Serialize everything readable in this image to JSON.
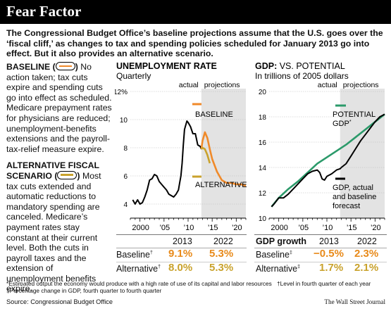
{
  "title": "Fear Factor",
  "intro": "The Congressional Budget Office’s baseline projections assume that the U.S. goes over the ‘fiscal cliff,’ as changes to tax and spending policies scheduled for January 2013 go into effect. But it also provides an alternative scenario.",
  "baseline_desc": {
    "heading": "BASELINE (",
    "heading_close": ")",
    "body": "No action taken; tax cuts expire and spending cuts go into effect as scheduled. Medicare prepayment rates for physicians are reduced; unemployment-benefits extensions and the payroll-tax-relief measure expire."
  },
  "alternative_desc": {
    "heading": "ALTERNATIVE FISCAL SCENARIO (",
    "heading_close": ")",
    "body": "Most tax cuts extended and automatic reductions to mandatory spending are canceled. Medicare’s payment rates stay constant at their current level. Both the cuts in payroll taxes and the extension of unemployment benefits expire."
  },
  "colors": {
    "baseline": "#f08a2a",
    "alternative": "#c9a22c",
    "potential": "#2b9a6a",
    "actual": "#000000",
    "projection_band": "#e3e3e3",
    "positive": "#e88a1a"
  },
  "chart_data": [
    {
      "type": "line",
      "title": "UNEMPLOYMENT RATE",
      "subtitle": "Quarterly",
      "y_unit": "%",
      "ylim": [
        3,
        12
      ],
      "y_ticks": [
        4,
        6,
        8,
        10,
        12
      ],
      "y_tick_labels": [
        "4",
        "6",
        "8",
        "10",
        "12%"
      ],
      "xlim": [
        1998,
        2022
      ],
      "x_ticks": [
        2000,
        2005,
        2010,
        2015,
        2020
      ],
      "x_tick_labels": [
        "2000",
        "’05",
        "’10",
        "’15",
        "’20"
      ],
      "region_labels": {
        "actual": "actual",
        "projections": "projections"
      },
      "projection_start": 2012.75,
      "series": [
        {
          "name": "",
          "role": "actual",
          "x": [
            1998.5,
            1999,
            1999.5,
            2000,
            2000.5,
            2001,
            2001.5,
            2002,
            2002.5,
            2003,
            2003.5,
            2004,
            2004.5,
            2005,
            2005.5,
            2006,
            2006.5,
            2007,
            2007.5,
            2008,
            2008.25,
            2008.5,
            2008.75,
            2009,
            2009.25,
            2009.5,
            2009.75,
            2010,
            2010.5,
            2011,
            2011.5,
            2012,
            2012.5,
            2012.75
          ],
          "y": [
            4.3,
            4.0,
            4.3,
            4.0,
            4.1,
            4.5,
            5.0,
            5.7,
            5.8,
            6.1,
            6.0,
            5.6,
            5.4,
            5.2,
            5.0,
            4.7,
            4.6,
            4.5,
            4.7,
            5.0,
            5.5,
            6.0,
            6.9,
            8.2,
            9.3,
            9.6,
            9.9,
            9.8,
            9.5,
            9.0,
            9.0,
            8.2,
            8.1,
            7.9
          ]
        },
        {
          "name": "BASELINE",
          "role": "baseline",
          "x": [
            2012.75,
            2013,
            2013.5,
            2014,
            2014.5,
            2015,
            2016,
            2017,
            2018,
            2019,
            2020,
            2021,
            2022
          ],
          "y": [
            7.9,
            8.5,
            9.1,
            8.7,
            7.9,
            7.2,
            6.3,
            5.7,
            5.5,
            5.5,
            5.4,
            5.4,
            5.3
          ]
        },
        {
          "name": "ALTERNATIVE",
          "role": "alternative",
          "x": [
            2012.75,
            2013,
            2013.5,
            2014,
            2014.5
          ],
          "y": [
            7.9,
            8.0,
            7.9,
            7.5,
            6.9
          ]
        }
      ],
      "table": {
        "years": [
          "2013",
          "2022"
        ],
        "rows": [
          {
            "label": "Baseline",
            "mark": "†",
            "values": [
              "9.1%",
              "5.3%"
            ]
          },
          {
            "label": "Alternative",
            "mark": "†",
            "values": [
              "8.0%",
              "5.3%"
            ]
          }
        ]
      }
    },
    {
      "type": "line",
      "title_bold": "GDP:",
      "title_rest": " VS. POTENTIAL",
      "subtitle": "In trillions of 2005 dollars",
      "ylim": [
        10,
        20
      ],
      "y_ticks": [
        10,
        12,
        14,
        16,
        18,
        20
      ],
      "y_tick_labels": [
        "10",
        "12",
        "14",
        "16",
        "18",
        "20"
      ],
      "xlim": [
        1998,
        2022
      ],
      "x_ticks": [
        2000,
        2005,
        2010,
        2015,
        2020
      ],
      "x_tick_labels": [
        "2000",
        "’05",
        "’10",
        "’15",
        "’20"
      ],
      "region_labels": {
        "actual": "actual",
        "projections": "projections"
      },
      "projection_start": 2012.75,
      "series": [
        {
          "name": "POTENTIAL GDP*",
          "role": "potential",
          "x": [
            1998.5,
            2000,
            2002,
            2004,
            2006,
            2008,
            2010,
            2012,
            2014,
            2016,
            2018,
            2020,
            2022
          ],
          "y": [
            10.9,
            11.6,
            12.3,
            12.9,
            13.6,
            14.3,
            14.8,
            15.3,
            15.8,
            16.4,
            17.0,
            17.6,
            18.2
          ]
        },
        {
          "name": "GDP, actual and baseline forecast",
          "role": "actual",
          "x": [
            1998.5,
            1999,
            2000,
            2001,
            2002,
            2003,
            2004,
            2005,
            2006,
            2007,
            2008,
            2008.5,
            2009,
            2009.5,
            2010,
            2011,
            2012,
            2012.75,
            2013,
            2014,
            2015,
            2016,
            2017,
            2018,
            2019,
            2020,
            2021,
            2022
          ],
          "y": [
            10.9,
            11.1,
            11.6,
            11.6,
            11.9,
            12.3,
            12.7,
            13.1,
            13.5,
            13.7,
            13.8,
            13.6,
            13.1,
            13.0,
            13.3,
            13.5,
            13.8,
            13.9,
            14.0,
            14.3,
            14.9,
            15.5,
            16.1,
            16.6,
            17.1,
            17.6,
            18.0,
            18.2
          ]
        }
      ],
      "legend": {
        "potential_line1": "POTENTIAL",
        "potential_line2": "GDP",
        "potential_mark": "*",
        "actual_lines": [
          "GDP, actual",
          "and baseline",
          "forecast"
        ]
      },
      "table": {
        "header": "GDP growth",
        "years": [
          "2013",
          "2022"
        ],
        "rows": [
          {
            "label": "Baseline",
            "mark": "‡",
            "values": [
              "−0.5%",
              "2.3%"
            ]
          },
          {
            "label": "Alternative",
            "mark": "‡",
            "values": [
              "1.7%",
              "2.1%"
            ]
          }
        ]
      }
    }
  ],
  "footnotes": {
    "star": "*Estimated output the economy would produce with a high rate of use of its capital and labor resources",
    "dagger": "†Level in fourth quarter of each year",
    "ddagger": "‡Percentage change in GDP, fourth quarter to fourth quarter"
  },
  "source": "Source: Congressional Budget Office",
  "credit": "The Wall Street Journal"
}
